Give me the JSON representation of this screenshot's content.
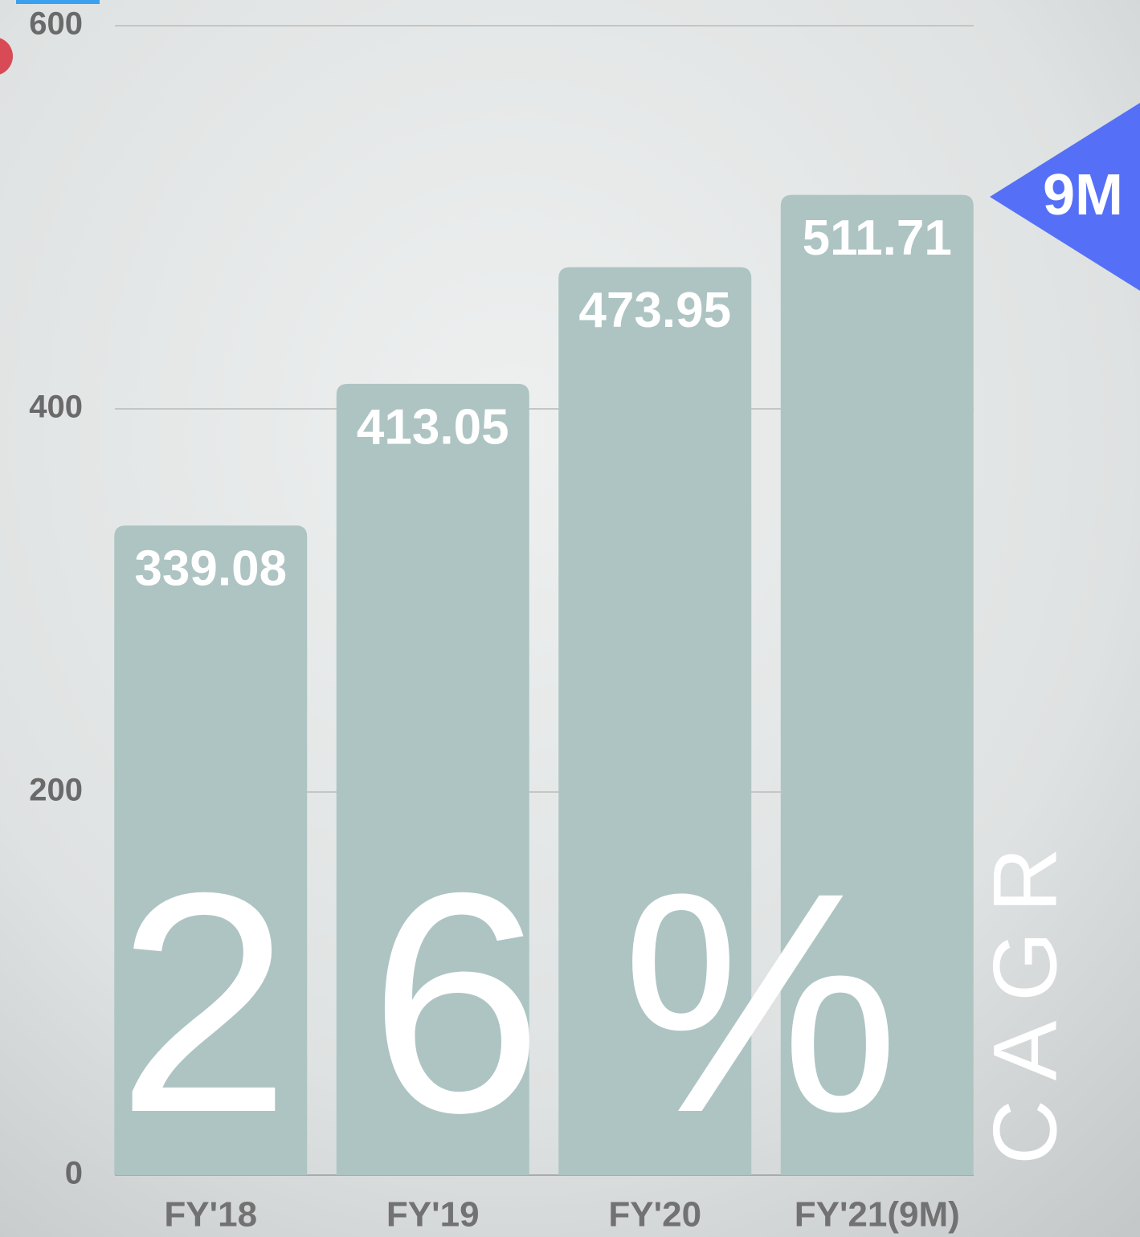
{
  "chart_data": {
    "type": "bar",
    "categories": [
      "FY'18",
      "FY'19",
      "FY'20",
      "FY'21(9M)"
    ],
    "values": [
      339.08,
      413.05,
      473.95,
      511.71
    ],
    "color": "#adc4c3",
    "ylim": [
      0,
      600
    ],
    "yticks": [
      0,
      200,
      400,
      600
    ],
    "grid": true,
    "annotations": {
      "growth": "26%",
      "growth_label": "CAGR",
      "badge": "9M"
    }
  }
}
